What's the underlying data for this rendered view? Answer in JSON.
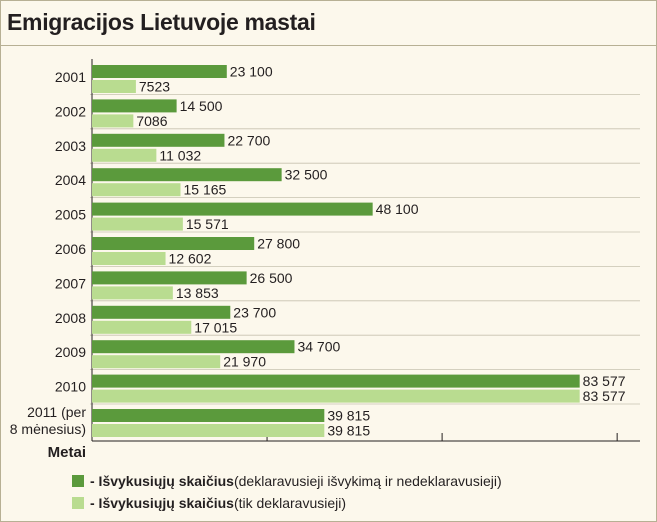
{
  "title": "Emigracijos Lietuvoje mastai",
  "chart_data": {
    "type": "bar",
    "orientation": "horizontal",
    "categories": [
      "2001",
      "2002",
      "2003",
      "2004",
      "2005",
      "2006",
      "2007",
      "2008",
      "2009",
      "2010",
      "2011 (per 8 mėnesius)"
    ],
    "category_lines": [
      [
        "2001"
      ],
      [
        "2002"
      ],
      [
        "2003"
      ],
      [
        "2004"
      ],
      [
        "2005"
      ],
      [
        "2006"
      ],
      [
        "2007"
      ],
      [
        "2008"
      ],
      [
        "2009"
      ],
      [
        "2010"
      ],
      [
        "2011 (per",
        "8 mėnesius)"
      ]
    ],
    "series": [
      {
        "name": "Išvykusiųjų skaičius (deklaravusieji išvykimą ir nedeklaravusieji)",
        "color": "#5b9a3c",
        "values": [
          23100,
          14500,
          22700,
          32500,
          48100,
          27800,
          26500,
          23700,
          34700,
          83577,
          39815
        ],
        "labels": [
          "23 100",
          "14 500",
          "22 700",
          "32 500",
          "48 100",
          "27 800",
          "26 500",
          "23 700",
          "34 700",
          "83 577",
          "39 815"
        ]
      },
      {
        "name": "Išvykusiųjų skaičius (tik deklaravusieji)",
        "color": "#b9dc90",
        "values": [
          7523,
          7086,
          11032,
          15165,
          15571,
          12602,
          13853,
          17015,
          21970,
          83577,
          39815
        ],
        "labels": [
          "7523",
          "7086",
          "11 032",
          "15 165",
          "15 571",
          "12 602",
          "13 853",
          "17 015",
          "21 970",
          "83 577",
          "39 815"
        ]
      }
    ],
    "xlim": [
      0,
      90000
    ],
    "xlabel": "",
    "ylabel": "Metai",
    "grid": true,
    "legend_position": "bottom"
  },
  "legend": [
    {
      "color": "#5b9a3c",
      "bold": "- Išvykusiųjų skaičius",
      "rest": " (deklaravusieji išvykimą ir nedeklaravusieji)"
    },
    {
      "color": "#b9dc90",
      "bold": "- Išvykusiųjų skaičius",
      "rest": " (tik deklaravusieji)"
    }
  ]
}
